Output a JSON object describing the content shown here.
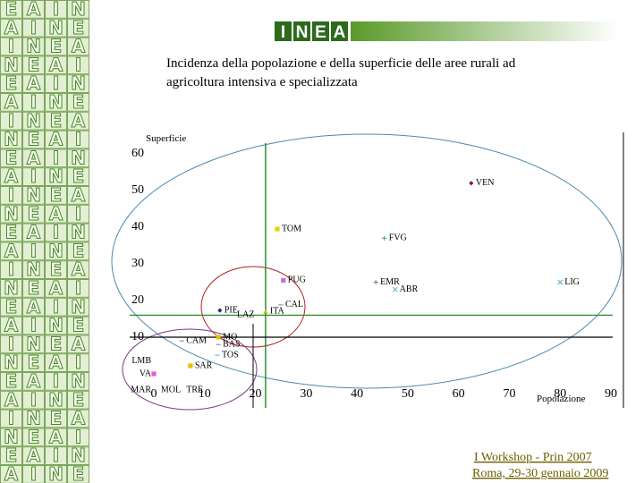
{
  "logo": [
    "I",
    "N",
    "E",
    "A"
  ],
  "sidebar": {
    "rows": [
      [
        "E",
        "A",
        "I",
        "N"
      ],
      [
        "A",
        "I",
        "N",
        "E"
      ],
      [
        "I",
        "N",
        "E",
        "A"
      ],
      [
        "N",
        "E",
        "A",
        "I"
      ],
      [
        "E",
        "A",
        "I",
        "N"
      ],
      [
        "A",
        "I",
        "N",
        "E"
      ],
      [
        "I",
        "N",
        "E",
        "A"
      ],
      [
        "N",
        "E",
        "A",
        "I"
      ],
      [
        "E",
        "A",
        "I",
        "N"
      ],
      [
        "A",
        "I",
        "N",
        "E"
      ],
      [
        "I",
        "N",
        "E",
        "A"
      ],
      [
        "N",
        "E",
        "A",
        "I"
      ],
      [
        "E",
        "A",
        "I",
        "N"
      ],
      [
        "A",
        "I",
        "N",
        "E"
      ],
      [
        "I",
        "N",
        "E",
        "A"
      ],
      [
        "N",
        "E",
        "A",
        "I"
      ],
      [
        "E",
        "A",
        "I",
        "N"
      ],
      [
        "A",
        "I",
        "N",
        "E"
      ],
      [
        "I",
        "N",
        "E",
        "A"
      ],
      [
        "N",
        "E",
        "A",
        "I"
      ],
      [
        "E",
        "A",
        "I",
        "N"
      ],
      [
        "A",
        "I",
        "N",
        "E"
      ],
      [
        "I",
        "N",
        "E",
        "A"
      ],
      [
        "N",
        "E",
        "A",
        "I"
      ],
      [
        "E",
        "A",
        "I",
        "N"
      ],
      [
        "A",
        "I",
        "N",
        "E"
      ]
    ]
  },
  "chart_data": {
    "type": "scatter",
    "title": [
      "Incidenza della popolazione e della superficie delle aree rurali ad",
      "agricoltura intensiva e specializzata"
    ],
    "x_label": "Popolazione",
    "y_label": "Superficie",
    "xlim": [
      0,
      90
    ],
    "ylim": [
      -10,
      65
    ],
    "xticks": [
      0,
      10,
      20,
      30,
      40,
      50,
      60,
      70,
      80,
      90
    ],
    "yticks": [
      10,
      20,
      30,
      40,
      50,
      60
    ],
    "reference_lines": [
      {
        "axis": "x",
        "value": 22,
        "color": "#2e8b2e"
      },
      {
        "axis": "y",
        "value": 16,
        "color": "#2e8b2e"
      },
      {
        "axis": "y",
        "value": 10,
        "color": "#000000"
      }
    ],
    "points": [
      {
        "label": "VEN",
        "x": 62.5,
        "y": 52,
        "color": "#8b1a1a",
        "marker": "diamond"
      },
      {
        "label": "TOM",
        "x": 24.3,
        "y": 39.5,
        "color": "#e6d200",
        "marker": "square"
      },
      {
        "label": "FVG",
        "x": 45.4,
        "y": 37,
        "color": "#3a9a9a",
        "marker": "plus"
      },
      {
        "label": "PUG",
        "x": 25.5,
        "y": 25.5,
        "color": "#c070e0",
        "marker": "square"
      },
      {
        "label": "EMR",
        "x": 43.7,
        "y": 25,
        "color": "#6080a0",
        "marker": "plus"
      },
      {
        "label": "ABR",
        "x": 47.5,
        "y": 23,
        "color": "#50b8d0",
        "marker": "cross"
      },
      {
        "label": "LIG",
        "x": 80,
        "y": 25,
        "color": "#50b0d0",
        "marker": "cross"
      },
      {
        "label": "PIE",
        "x": 13,
        "y": 17.3,
        "color": "#1a2a6a",
        "marker": "diamond"
      },
      {
        "label": "LAZ",
        "x": 15.5,
        "y": 16,
        "color": "#000000",
        "marker": "none"
      },
      {
        "label": "CAL",
        "x": 25,
        "y": 18.8,
        "color": "#808080",
        "marker": "dash"
      },
      {
        "label": "ITA",
        "x": 22,
        "y": 17,
        "color": "#b8c000",
        "marker": "triangle"
      },
      {
        "label": "CAM",
        "x": 5.5,
        "y": 9,
        "color": "#808080",
        "marker": "dash"
      },
      {
        "label": "MO",
        "x": 12.7,
        "y": 10,
        "color": "#e6c000",
        "marker": "square"
      },
      {
        "label": "BAS",
        "x": 12.7,
        "y": 8,
        "color": "#808080",
        "marker": "dash"
      },
      {
        "label": "TOS",
        "x": 12.5,
        "y": 5.1,
        "color": "#50b0d0",
        "marker": "dash"
      },
      {
        "label": "SAR",
        "x": 7.2,
        "y": 2.2,
        "color": "#e6c000",
        "marker": "square"
      },
      {
        "label": "LMB",
        "x": 0,
        "y": 3.5,
        "color": "#000000",
        "marker": "none"
      },
      {
        "label": "VA",
        "x": 0,
        "y": 0,
        "color": "#e060e0",
        "marker": "square"
      },
      {
        "label": "MAR",
        "x": 0,
        "y": -4.5,
        "color": "#000000",
        "marker": "none"
      },
      {
        "label": "MOL",
        "x": 0.5,
        "y": -4.5,
        "color": "#000000",
        "marker": "none"
      },
      {
        "label": "TRE",
        "x": 5.5,
        "y": -4.5,
        "color": "#000000",
        "marker": "none"
      }
    ]
  },
  "footer": [
    "I  Workshop - Prin 2007",
    "Roma, 29-30 gennaio 2009"
  ]
}
